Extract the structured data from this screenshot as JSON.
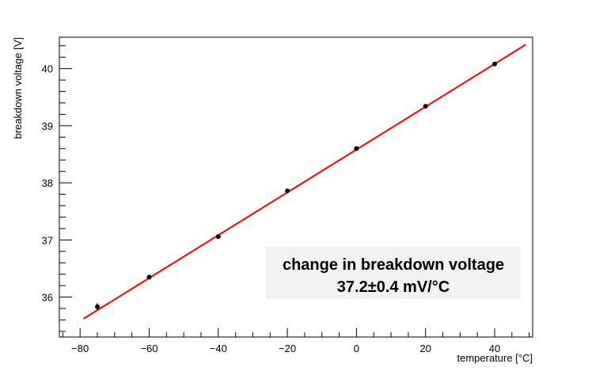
{
  "chart_data": {
    "type": "scatter",
    "title": "",
    "xlabel": "temperature [°C]",
    "ylabel": "breakdown voltage [V]",
    "xlim": [
      -86,
      51
    ],
    "ylim": [
      35.3,
      40.55
    ],
    "xticks": [
      -80,
      -60,
      -40,
      -20,
      0,
      20,
      40
    ],
    "xtick_labels": [
      "−80",
      "−60",
      "−40",
      "−20",
      "0",
      "20",
      "40"
    ],
    "yticks": [
      36,
      37,
      38,
      39,
      40
    ],
    "ytick_labels": [
      "36",
      "37",
      "38",
      "39",
      "40"
    ],
    "grid": false,
    "series": [
      {
        "marker_color": "#000000",
        "x": [
          -75,
          -60,
          -40,
          -20,
          0,
          20,
          40
        ],
        "y": [
          35.83,
          36.35,
          37.06,
          37.86,
          38.6,
          39.34,
          40.08
        ],
        "yerr": [
          0.06,
          0.03,
          0.03,
          0.03,
          0.03,
          0.03,
          0.03
        ]
      }
    ],
    "fit": {
      "color": "#ff0000",
      "x_range": [
        -79,
        49
      ],
      "y_range": [
        35.62,
        40.42
      ]
    },
    "annotation": {
      "line1": "change in breakdown voltage",
      "line2": "37.2±0.4 mV/°C",
      "background": "#f2f2f2"
    }
  }
}
